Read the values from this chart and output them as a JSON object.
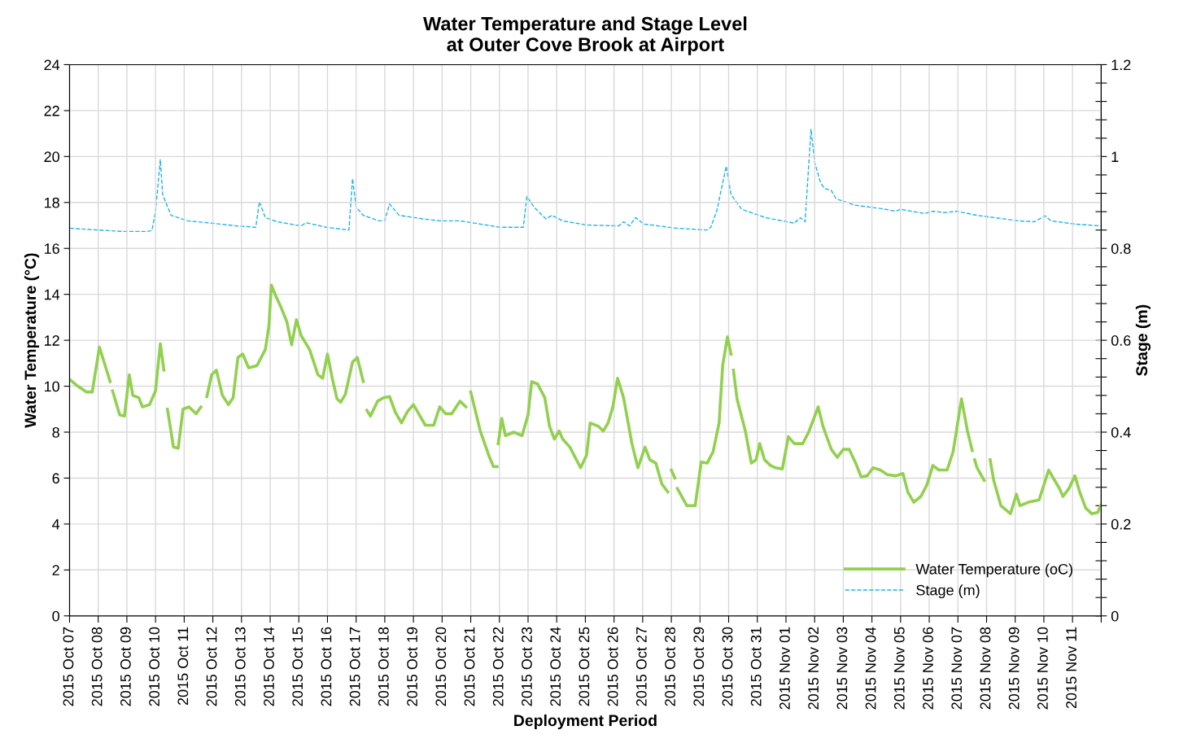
{
  "chart_data": {
    "type": "line",
    "title": "Water Temperature and Stage Level\nat Outer Cove Brook at Airport",
    "xlabel": "Deployment Period",
    "ylabel": "Water Temperature (°C)",
    "y2label": "Stage (m)",
    "xlim": [
      "2015-10-07",
      "2015-11-12"
    ],
    "xticks": [
      {
        "value": "2015-10-07",
        "label": "2015 Oct 07"
      },
      {
        "value": "2015-10-08",
        "label": "2015 Oct 08"
      },
      {
        "value": "2015-10-09",
        "label": "2015 Oct 09"
      },
      {
        "value": "2015-10-10",
        "label": "2015 Oct 10"
      },
      {
        "value": "2015-10-11",
        "label": "2015 Oct 11"
      },
      {
        "value": "2015-10-12",
        "label": "2015 Oct 12"
      },
      {
        "value": "2015-10-13",
        "label": "2015 Oct 13"
      },
      {
        "value": "2015-10-14",
        "label": "2015 Oct 14"
      },
      {
        "value": "2015-10-15",
        "label": "2015 Oct 15"
      },
      {
        "value": "2015-10-16",
        "label": "2015 Oct 16"
      },
      {
        "value": "2015-10-17",
        "label": "2015 Oct 17"
      },
      {
        "value": "2015-10-18",
        "label": "2015 Oct 18"
      },
      {
        "value": "2015-10-19",
        "label": "2015 Oct 19"
      },
      {
        "value": "2015-10-20",
        "label": "2015 Oct 20"
      },
      {
        "value": "2015-10-21",
        "label": "2015 Oct 21"
      },
      {
        "value": "2015-10-22",
        "label": "2015 Oct 22"
      },
      {
        "value": "2015-10-23",
        "label": "2015 Oct 23"
      },
      {
        "value": "2015-10-24",
        "label": "2015 Oct 24"
      },
      {
        "value": "2015-10-25",
        "label": "2015 Oct 25"
      },
      {
        "value": "2015-10-26",
        "label": "2015 Oct 26"
      },
      {
        "value": "2015-10-27",
        "label": "2015 Oct 27"
      },
      {
        "value": "2015-10-28",
        "label": "2015 Oct 28"
      },
      {
        "value": "2015-10-29",
        "label": "2015 Oct 29"
      },
      {
        "value": "2015-10-30",
        "label": "2015 Oct 30"
      },
      {
        "value": "2015-10-31",
        "label": "2015 Oct 31"
      },
      {
        "value": "2015-11-01",
        "label": "2015 Nov 01"
      },
      {
        "value": "2015-11-02",
        "label": "2015 Nov 02"
      },
      {
        "value": "2015-11-03",
        "label": "2015 Nov 03"
      },
      {
        "value": "2015-11-04",
        "label": "2015 Nov 04"
      },
      {
        "value": "2015-11-05",
        "label": "2015 Nov 05"
      },
      {
        "value": "2015-11-06",
        "label": "2015 Nov 06"
      },
      {
        "value": "2015-11-07",
        "label": "2015 Nov 07"
      },
      {
        "value": "2015-11-08",
        "label": "2015 Nov 08"
      },
      {
        "value": "2015-11-09",
        "label": "2015 Nov 09"
      },
      {
        "value": "2015-11-10",
        "label": "2015 Nov 10"
      },
      {
        "value": "2015-11-11",
        "label": "2015 Nov 11"
      },
      {
        "value": "2015-11-12",
        "label": null
      }
    ],
    "ylim": [
      0,
      24
    ],
    "yticks": [
      0,
      2,
      4,
      6,
      8,
      10,
      12,
      14,
      16,
      18,
      20,
      22,
      24
    ],
    "y2lim": [
      0,
      1.2
    ],
    "y2ticks": [
      0,
      {
        "value": 0.04,
        "label": null
      },
      {
        "value": 0.08,
        "label": null
      },
      {
        "value": 0.12,
        "label": null
      },
      {
        "value": 0.16,
        "label": null
      },
      0.2,
      {
        "value": 0.24,
        "label": null
      },
      {
        "value": 0.28,
        "label": null
      },
      {
        "value": 0.32,
        "label": null
      },
      {
        "value": 0.36,
        "label": null
      },
      0.4,
      {
        "value": 0.44,
        "label": null
      },
      {
        "value": 0.48,
        "label": null
      },
      {
        "value": 0.52,
        "label": null
      },
      {
        "value": 0.56,
        "label": null
      },
      0.6,
      {
        "value": 0.64,
        "label": null
      },
      {
        "value": 0.68,
        "label": null
      },
      {
        "value": 0.72,
        "label": null
      },
      {
        "value": 0.76,
        "label": null
      },
      0.8,
      {
        "value": 0.84,
        "label": null
      },
      {
        "value": 0.88,
        "label": null
      },
      {
        "value": 0.92,
        "label": null
      },
      {
        "value": 0.96,
        "label": null
      },
      1,
      {
        "value": 1.04,
        "label": null
      },
      {
        "value": 1.08,
        "label": null
      },
      {
        "value": 1.12,
        "label": null
      },
      {
        "value": 1.16,
        "label": null
      },
      1.2
    ],
    "grid": true,
    "legend": "bottom right",
    "series": [
      {
        "name": "Water Temperature (oC)",
        "color": "#92d050",
        "line_style": "solid",
        "x": [
          "2015-10-07T00:00",
          "2015-10-07T07:00",
          "2015-10-07T14:00",
          "2015-10-07T19:00",
          "2015-10-08T01:00",
          "2015-10-08T07:00",
          "2015-10-08T10:00",
          "2015-10-08T11:00",
          "2015-10-08T12:00",
          "2015-10-08T18:00",
          "2015-10-08T22:00",
          "2015-10-09T02:00",
          "2015-10-09T05:00",
          "2015-10-09T10:00",
          "2015-10-09T13:00",
          "2015-10-09T19:00",
          "2015-10-10T00:00",
          "2015-10-10T04:00",
          "2015-10-10T07:00",
          "2015-10-10T08:00",
          "2015-10-10T10:00",
          "2015-10-10T15:00",
          "2015-10-10T19:00",
          "2015-10-10T23:00",
          "2015-10-11T04:00",
          "2015-10-11T10:00",
          "2015-10-11T14:00",
          "2015-10-11T16:00",
          "2015-10-11T19:00",
          "2015-10-11T23:00",
          "2015-10-12T03:00",
          "2015-10-12T08:00",
          "2015-10-12T13:00",
          "2015-10-12T17:00",
          "2015-10-12T21:00",
          "2015-10-13T01:00",
          "2015-10-13T06:00",
          "2015-10-13T13:00",
          "2015-10-13T20:00",
          "2015-10-13T23:00",
          "2015-10-14T01:00",
          "2015-10-14T05:00",
          "2015-10-14T09:00",
          "2015-10-14T14:00",
          "2015-10-14T18:00",
          "2015-10-14T22:00",
          "2015-10-15T02:00",
          "2015-10-15T09:00",
          "2015-10-15T16:00",
          "2015-10-15T20:00",
          "2015-10-16T00:00",
          "2015-10-16T04:00",
          "2015-10-16T08:00",
          "2015-10-16T11:00",
          "2015-10-16T15:00",
          "2015-10-16T21:00",
          "2015-10-17T01:00",
          "2015-10-17T06:00",
          "2015-10-17T07:00",
          "2015-10-17T09:00",
          "2015-10-17T12:00",
          "2015-10-17T18:00",
          "2015-10-17T23:00",
          "2015-10-18T04:00",
          "2015-10-18T09:00",
          "2015-10-18T14:00",
          "2015-10-18T19:00",
          "2015-10-19T00:00",
          "2015-10-19T05:00",
          "2015-10-19T10:00",
          "2015-10-19T17:00",
          "2015-10-19T22:00",
          "2015-10-20T03:00",
          "2015-10-20T08:00",
          "2015-10-20T15:00",
          "2015-10-20T20:00",
          "2015-10-20T22:00",
          "2015-10-21T00:00",
          "2015-10-21T08:00",
          "2015-10-21T15:00",
          "2015-10-21T19:00",
          "2015-10-21T22:00",
          "2015-10-21T22:30",
          "2015-10-21T23:00",
          "2015-10-22T02:00",
          "2015-10-22T05:00",
          "2015-10-22T12:00",
          "2015-10-22T19:00",
          "2015-10-23T00:00",
          "2015-10-23T03:00",
          "2015-10-23T08:00",
          "2015-10-23T14:00",
          "2015-10-23T18:00",
          "2015-10-23T22:00",
          "2015-10-24T02:00",
          "2015-10-24T05:00",
          "2015-10-24T11:00",
          "2015-10-24T20:00",
          "2015-10-25T01:00",
          "2015-10-25T04:00",
          "2015-10-25T11:00",
          "2015-10-25T15:00",
          "2015-10-25T19:00",
          "2015-10-25T23:00",
          "2015-10-26T03:00",
          "2015-10-26T08:00",
          "2015-10-26T15:00",
          "2015-10-26T20:00",
          "2015-10-27T02:00",
          "2015-10-27T06:00",
          "2015-10-27T11:00",
          "2015-10-27T16:00",
          "2015-10-27T21:00",
          "2015-10-27T22:00",
          "2015-10-28T00:00",
          "2015-10-28T03:00",
          "2015-10-28T04:00",
          "2015-10-28T05:00",
          "2015-10-28T13:00",
          "2015-10-28T20:00",
          "2015-10-29T01:00",
          "2015-10-29T06:00",
          "2015-10-29T11:00",
          "2015-10-29T16:00",
          "2015-10-29T19:00",
          "2015-10-29T23:00",
          "2015-10-30T02:00",
          "2015-10-30T03:00",
          "2015-10-30T04:00",
          "2015-10-30T07:00",
          "2015-10-30T14:00",
          "2015-10-30T19:00",
          "2015-10-30T23:00",
          "2015-10-31T02:00",
          "2015-10-31T06:00",
          "2015-10-31T11:00",
          "2015-10-31T15:00",
          "2015-10-31T21:00",
          "2015-11-01T02:00",
          "2015-11-01T07:00",
          "2015-11-01T14:00",
          "2015-11-01T19:00",
          "2015-11-02T03:00",
          "2015-11-02T07:00",
          "2015-11-02T14:00",
          "2015-11-02T19:00",
          "2015-11-03T00:00",
          "2015-11-03T05:00",
          "2015-11-03T10:00",
          "2015-11-03T15:00",
          "2015-11-03T20:00",
          "2015-11-04T01:00",
          "2015-11-04T07:00",
          "2015-11-04T13:00",
          "2015-11-04T20:00",
          "2015-11-05T02:00",
          "2015-11-05T06:00",
          "2015-11-05T11:00",
          "2015-11-05T17:00",
          "2015-11-05T22:00",
          "2015-11-06T03:00",
          "2015-11-06T08:00",
          "2015-11-06T15:00",
          "2015-11-06T20:00",
          "2015-11-07T03:00",
          "2015-11-07T08:00",
          "2015-11-07T12:00",
          "2015-11-07T13:00",
          "2015-11-07T14:00",
          "2015-11-07T16:00",
          "2015-11-07T22:00",
          "2015-11-08T01:00",
          "2015-11-08T03:00",
          "2015-11-08T06:00",
          "2015-11-08T12:00",
          "2015-11-08T20:00",
          "2015-11-09T01:00",
          "2015-11-09T04:00",
          "2015-11-09T11:00",
          "2015-11-09T20:00",
          "2015-11-10T04:00",
          "2015-11-10T09:00",
          "2015-11-10T13:00",
          "2015-11-10T16:00",
          "2015-11-10T21:00",
          "2015-11-11T02:00",
          "2015-11-11T06:00",
          "2015-11-11T11:00",
          "2015-11-11T16:00",
          "2015-11-11T21:00",
          "2015-11-12T00:00"
        ],
        "values": [
          10.3,
          10.0,
          9.75,
          9.75,
          11.7,
          10.7,
          10.2,
          null,
          9.8,
          8.75,
          8.7,
          10.5,
          9.6,
          9.5,
          9.1,
          9.2,
          9.8,
          11.85,
          10.7,
          null,
          9.0,
          7.35,
          7.3,
          9.0,
          9.1,
          8.8,
          9.1,
          null,
          9.55,
          10.5,
          10.7,
          9.6,
          9.2,
          9.5,
          11.25,
          11.4,
          10.8,
          10.9,
          11.6,
          12.65,
          14.4,
          13.9,
          13.45,
          12.8,
          11.8,
          12.9,
          12.2,
          11.6,
          10.5,
          10.35,
          11.4,
          10.35,
          9.45,
          9.3,
          9.65,
          11.05,
          11.25,
          10.2,
          null,
          8.95,
          8.7,
          9.35,
          9.5,
          9.55,
          8.85,
          8.4,
          8.9,
          9.2,
          8.75,
          8.3,
          8.3,
          9.1,
          8.8,
          8.8,
          9.35,
          9.1,
          null,
          9.75,
          8.05,
          7.0,
          6.5,
          6.5,
          null,
          7.5,
          8.6,
          7.85,
          8.0,
          7.85,
          8.75,
          10.2,
          10.1,
          9.5,
          8.25,
          7.7,
          8.05,
          7.7,
          7.35,
          6.45,
          7.0,
          8.4,
          8.25,
          8.05,
          8.4,
          9.1,
          10.35,
          9.5,
          7.5,
          6.45,
          7.35,
          6.8,
          6.65,
          5.75,
          5.4,
          null,
          6.35,
          6.0,
          null,
          5.55,
          4.8,
          4.8,
          6.7,
          6.65,
          7.15,
          8.4,
          10.9,
          12.15,
          11.4,
          null,
          10.7,
          9.45,
          8.05,
          6.65,
          6.8,
          7.5,
          6.8,
          6.55,
          6.45,
          6.4,
          7.8,
          7.5,
          7.5,
          8.0,
          9.1,
          8.25,
          7.25,
          6.9,
          7.25,
          7.25,
          6.7,
          6.05,
          6.1,
          6.45,
          6.35,
          6.15,
          6.1,
          6.2,
          5.4,
          4.95,
          5.2,
          5.7,
          6.55,
          6.35,
          6.35,
          7.15,
          9.45,
          8.05,
          7.2,
          null,
          6.8,
          6.45,
          5.9,
          null,
          6.8,
          5.9,
          4.8,
          4.45,
          5.3,
          4.8,
          4.95,
          5.05,
          6.35,
          5.9,
          5.55,
          5.2,
          5.55,
          6.1,
          5.4,
          4.7,
          4.45,
          4.5,
          4.85
        ]
      },
      {
        "name": "Stage (m)",
        "color": "#1fb4ec",
        "line_style": "dashed",
        "axis": "y2",
        "x": [
          "2015-10-07T00:00",
          "2015-10-08T00:00",
          "2015-10-08T20:00",
          "2015-10-09T17:00",
          "2015-10-09T21:00",
          "2015-10-10T00:00",
          "2015-10-10T04:00",
          "2015-10-10T06:00",
          "2015-10-10T13:00",
          "2015-10-11T03:00",
          "2015-10-11T23:00",
          "2015-10-12T20:00",
          "2015-10-13T12:00",
          "2015-10-13T15:00",
          "2015-10-13T20:00",
          "2015-10-14T06:00",
          "2015-10-15T02:00",
          "2015-10-15T06:00",
          "2015-10-15T23:00",
          "2015-10-16T18:00",
          "2015-10-16T21:00",
          "2015-10-17T00:00",
          "2015-10-17T06:00",
          "2015-10-17T19:00",
          "2015-10-18T00:00",
          "2015-10-18T04:00",
          "2015-10-18T12:00",
          "2015-10-19T09:00",
          "2015-10-19T22:00",
          "2015-10-20T15:00",
          "2015-10-21T08:00",
          "2015-10-22T01:00",
          "2015-10-22T20:00",
          "2015-10-22T23:00",
          "2015-10-23T05:00",
          "2015-10-23T15:00",
          "2015-10-23T20:00",
          "2015-10-24T05:00",
          "2015-10-25T01:00",
          "2015-10-26T04:00",
          "2015-10-26T08:00",
          "2015-10-26T13:00",
          "2015-10-26T18:00",
          "2015-10-27T01:00",
          "2015-10-28T04:00",
          "2015-10-29T06:00",
          "2015-10-29T09:00",
          "2015-10-29T14:00",
          "2015-10-29T22:00",
          "2015-10-30T02:00",
          "2015-10-30T11:00",
          "2015-10-31T07:00",
          "2015-11-01T07:00",
          "2015-11-01T12:00",
          "2015-11-01T16:00",
          "2015-11-01T21:00",
          "2015-11-02T00:00",
          "2015-11-02T05:00",
          "2015-11-02T08:00",
          "2015-11-02T14:00",
          "2015-11-02T18:00",
          "2015-11-03T10:00",
          "2015-11-04T07:00",
          "2015-11-04T20:00",
          "2015-11-05T00:00",
          "2015-11-05T20:00",
          "2015-11-06T03:00",
          "2015-11-06T13:00",
          "2015-11-06T23:00",
          "2015-11-07T16:00",
          "2015-11-09T03:00",
          "2015-11-09T16:00",
          "2015-11-10T01:00",
          "2015-11-10T06:00",
          "2015-11-11T02:00",
          "2015-11-12T00:00"
        ],
        "values": [
          0.844,
          0.84,
          0.837,
          0.837,
          0.839,
          0.881,
          0.993,
          0.917,
          0.872,
          0.86,
          0.855,
          0.849,
          0.846,
          0.902,
          0.867,
          0.858,
          0.849,
          0.856,
          0.846,
          0.84,
          0.952,
          0.89,
          0.872,
          0.86,
          0.86,
          0.897,
          0.872,
          0.864,
          0.86,
          0.86,
          0.853,
          0.846,
          0.846,
          0.913,
          0.89,
          0.864,
          0.872,
          0.86,
          0.851,
          0.849,
          0.858,
          0.849,
          0.867,
          0.853,
          0.844,
          0.84,
          0.846,
          0.881,
          0.979,
          0.917,
          0.885,
          0.867,
          0.855,
          0.867,
          0.858,
          1.059,
          0.988,
          0.943,
          0.931,
          0.926,
          0.908,
          0.894,
          0.887,
          0.881,
          0.885,
          0.876,
          0.881,
          0.878,
          0.881,
          0.872,
          0.86,
          0.858,
          0.871,
          0.86,
          0.853,
          0.849
        ]
      }
    ]
  }
}
